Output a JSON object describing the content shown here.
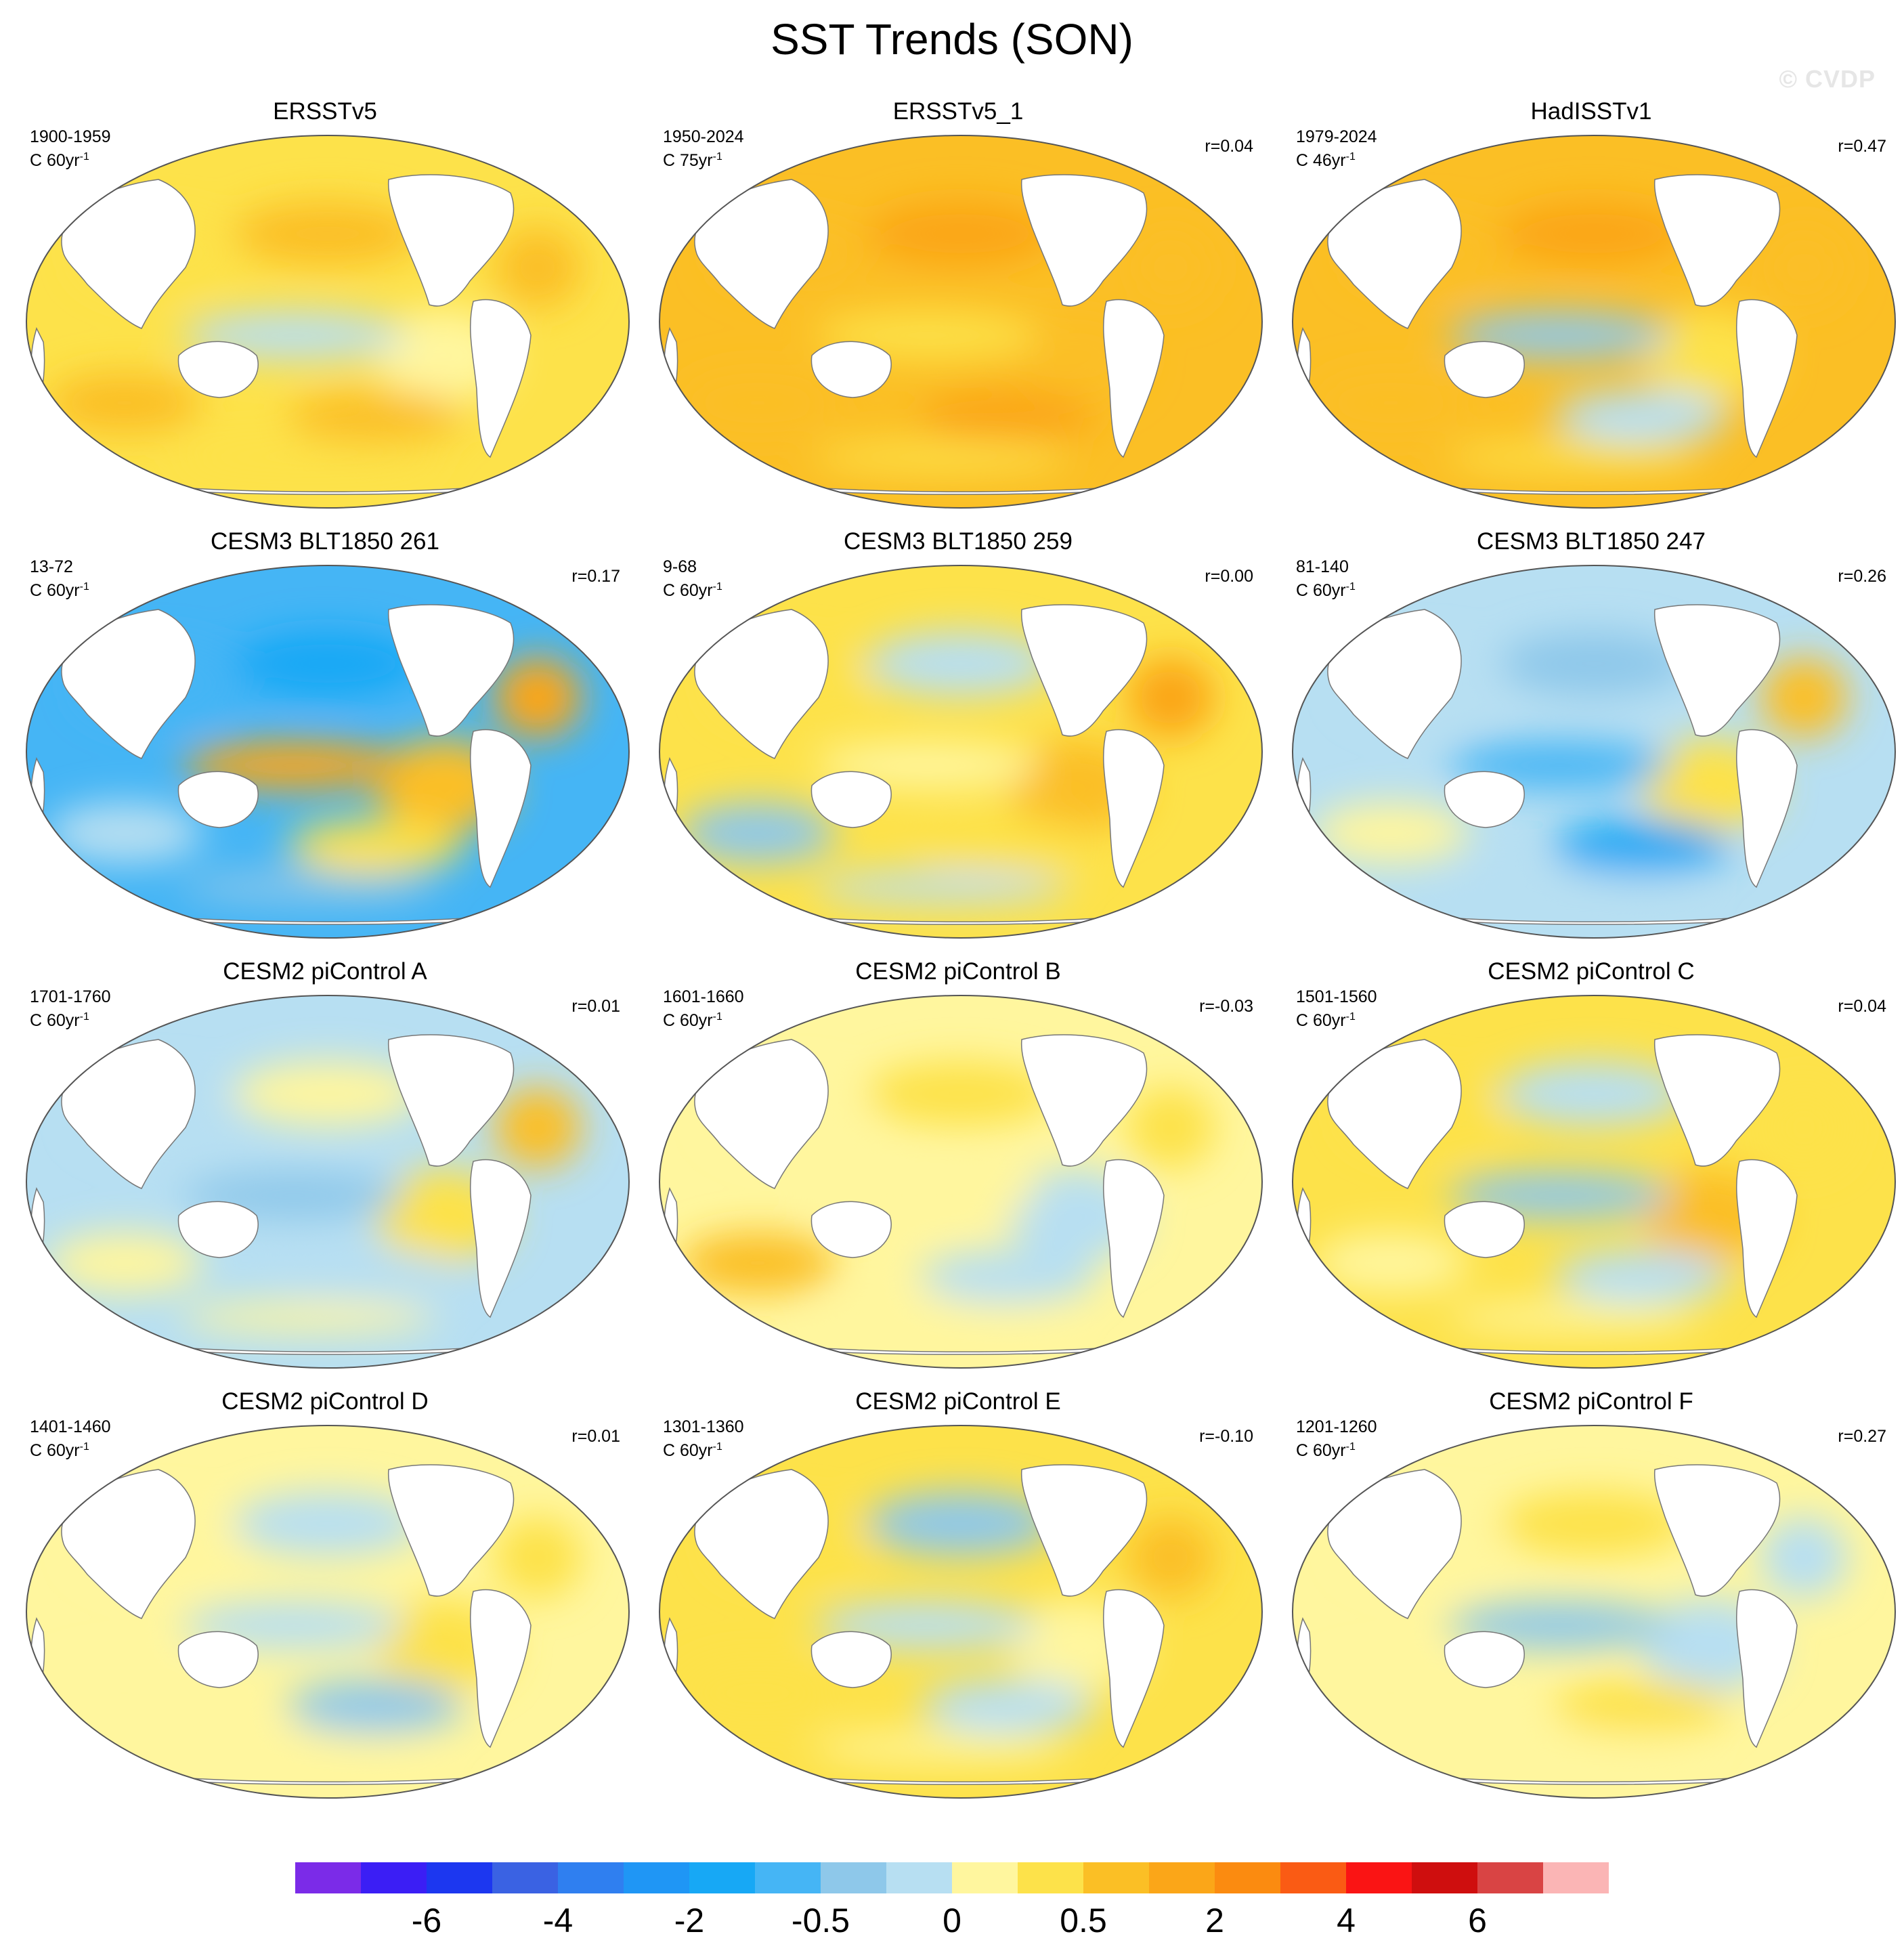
{
  "title": "SST Trends (SON)",
  "watermark": "© CVDP",
  "chart_data": [
    {
      "type": "heatmap",
      "projection": "robinson",
      "title": "ERSSTv5",
      "period": "1900-1959",
      "units": "C 60yr",
      "units_exp": "-1",
      "r": "",
      "palette": [
        "#fde24a",
        "#fbbf25",
        "#fff69e",
        "#b7dff2",
        "#fbbf25",
        "#fbbf25",
        "#fbbf25",
        "#fde24a"
      ]
    },
    {
      "type": "heatmap",
      "projection": "robinson",
      "title": "ERSSTv5_1",
      "period": "1950-2024",
      "units": "C 75yr",
      "units_exp": "-1",
      "r": "r=0.04",
      "palette": [
        "#fbbf25",
        "#fba618",
        "#fbbf25",
        "#fde24a",
        "#fbbf25",
        "#fba618",
        "#fbbf25",
        "#fde24a"
      ]
    },
    {
      "type": "heatmap",
      "projection": "robinson",
      "title": "HadISSTv1",
      "period": "1979-2024",
      "units": "C 46yr",
      "units_exp": "-1",
      "r": "r=0.47",
      "palette": [
        "#fbbf25",
        "#fba618",
        "#fde24a",
        "#8ec8ea",
        "#fbbf25",
        "#b7dff2",
        "#fbbf25",
        "#fde24a"
      ]
    },
    {
      "type": "heatmap",
      "projection": "robinson",
      "title": "CESM3 BLT1850 261",
      "period": "13-72",
      "units": "C 60yr",
      "units_exp": "-1",
      "r": "r=0.17",
      "palette": [
        "#45b5f5",
        "#17a8f5",
        "#fbbf25",
        "#fba618",
        "#b7dff2",
        "#fde24a",
        "#fba618",
        "#8ec8ea"
      ]
    },
    {
      "type": "heatmap",
      "projection": "robinson",
      "title": "CESM3 BLT1850 259",
      "period": "9-68",
      "units": "C 60yr",
      "units_exp": "-1",
      "r": "r=0.00",
      "palette": [
        "#fde24a",
        "#b7dff2",
        "#fbbf25",
        "#fff69e",
        "#8ec8ea",
        "#fde24a",
        "#fba618",
        "#b7dff2"
      ]
    },
    {
      "type": "heatmap",
      "projection": "robinson",
      "title": "CESM3 BLT1850 247",
      "period": "81-140",
      "units": "C 60yr",
      "units_exp": "-1",
      "r": "r=0.26",
      "palette": [
        "#b7dff2",
        "#8ec8ea",
        "#fde24a",
        "#45b5f5",
        "#fff69e",
        "#17a8f5",
        "#fbbf25",
        "#b7dff2"
      ]
    },
    {
      "type": "heatmap",
      "projection": "robinson",
      "title": "CESM2 piControl A",
      "period": "1701-1760",
      "units": "C 60yr",
      "units_exp": "-1",
      "r": "r=0.01",
      "palette": [
        "#b7dff2",
        "#fff69e",
        "#fde24a",
        "#8ec8ea",
        "#fff69e",
        "#b7dff2",
        "#fbbf25",
        "#fff69e"
      ]
    },
    {
      "type": "heatmap",
      "projection": "robinson",
      "title": "CESM2 piControl B",
      "period": "1601-1660",
      "units": "C 60yr",
      "units_exp": "-1",
      "r": "r=-0.03",
      "palette": [
        "#fff69e",
        "#fde24a",
        "#b7dff2",
        "#fff69e",
        "#fbbf25",
        "#b7dff2",
        "#fde24a",
        "#fff69e"
      ]
    },
    {
      "type": "heatmap",
      "projection": "robinson",
      "title": "CESM2 piControl C",
      "period": "1501-1560",
      "units": "C 60yr",
      "units_exp": "-1",
      "r": "r=0.04",
      "palette": [
        "#fde24a",
        "#b7dff2",
        "#fbbf25",
        "#8ec8ea",
        "#fff69e",
        "#b7dff2",
        "#fde24a",
        "#fff69e"
      ]
    },
    {
      "type": "heatmap",
      "projection": "robinson",
      "title": "CESM2 piControl D",
      "period": "1401-1460",
      "units": "C 60yr",
      "units_exp": "-1",
      "r": "r=0.01",
      "palette": [
        "#fff69e",
        "#b7dff2",
        "#fde24a",
        "#b7dff2",
        "#fff69e",
        "#8ec8ea",
        "#fde24a",
        "#fff69e"
      ]
    },
    {
      "type": "heatmap",
      "projection": "robinson",
      "title": "CESM2 piControl E",
      "period": "1301-1360",
      "units": "C 60yr",
      "units_exp": "-1",
      "r": "r=-0.10",
      "palette": [
        "#fde24a",
        "#8ec8ea",
        "#fff69e",
        "#b7dff2",
        "#fde24a",
        "#b7dff2",
        "#fbbf25",
        "#fff69e"
      ]
    },
    {
      "type": "heatmap",
      "projection": "robinson",
      "title": "CESM2 piControl F",
      "period": "1201-1260",
      "units": "C 60yr",
      "units_exp": "-1",
      "r": "r=0.27",
      "palette": [
        "#fff69e",
        "#fde24a",
        "#b7dff2",
        "#8ec8ea",
        "#fff69e",
        "#fde24a",
        "#b7dff2",
        "#fff69e"
      ]
    }
  ],
  "colorbar": {
    "colors": [
      "#7b2be8",
      "#3b1ef5",
      "#1c37f0",
      "#3a62e3",
      "#2f7ff0",
      "#1f96f5",
      "#17a8f5",
      "#45b5f5",
      "#8ec8ea",
      "#b7dff2",
      "#fff69e",
      "#fde24a",
      "#fbbf25",
      "#fba618",
      "#fb8b10",
      "#fa5b14",
      "#fa1414",
      "#cf0e0e",
      "#d94444",
      "#fbb5b5"
    ],
    "labels": [
      "-6",
      "-4",
      "-2",
      "-0.5",
      "0",
      "0.5",
      "2",
      "4",
      "6"
    ],
    "label_boundaries": [
      2,
      4,
      6,
      8,
      10,
      12,
      14,
      16,
      18
    ]
  }
}
